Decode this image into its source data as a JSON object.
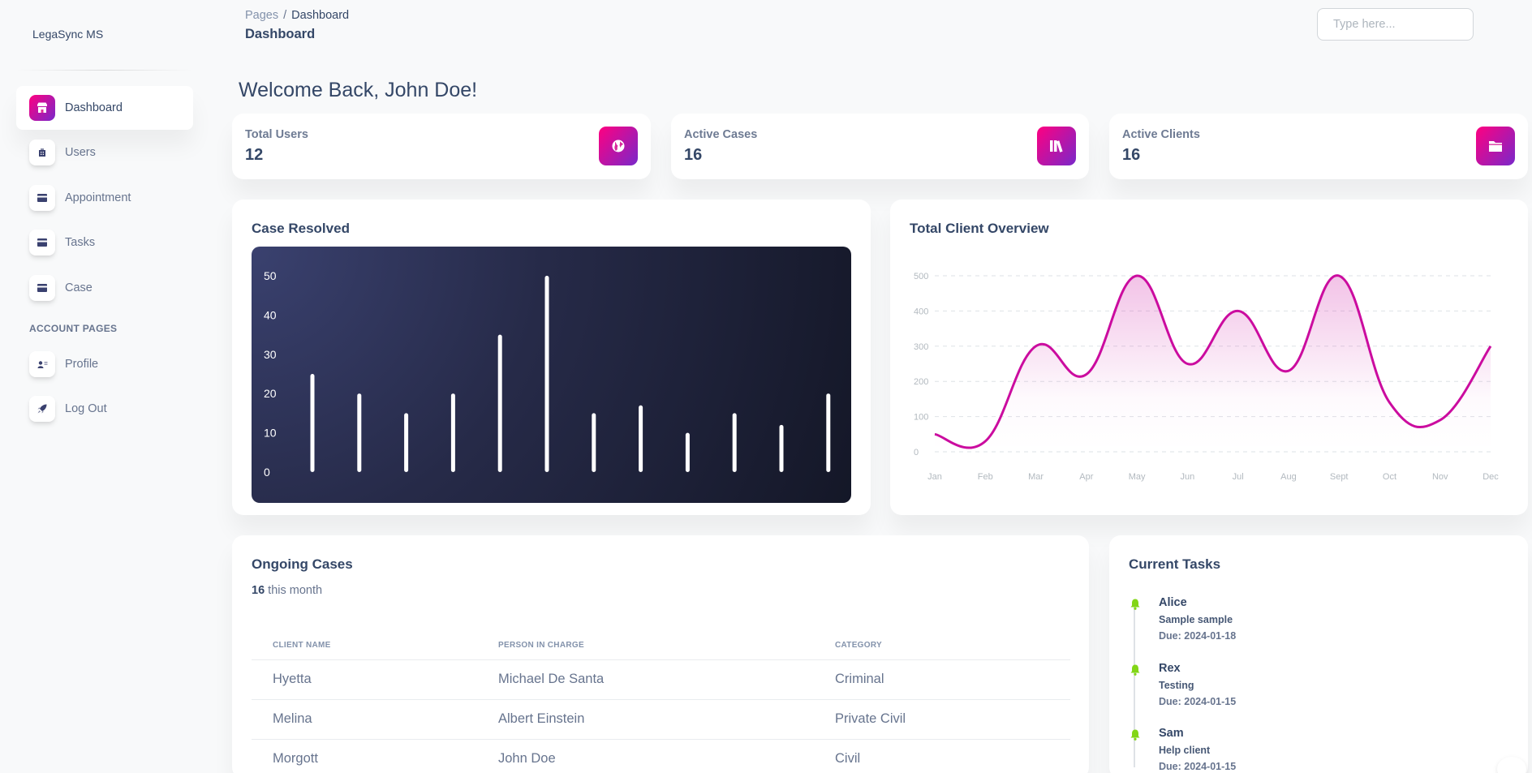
{
  "app": {
    "brand": "LegaSync MS"
  },
  "sidebar": {
    "items": [
      {
        "label": "Dashboard",
        "icon": "shop-icon",
        "active": true
      },
      {
        "label": "Users",
        "icon": "office-icon"
      },
      {
        "label": "Appointment",
        "icon": "credit-card-icon"
      },
      {
        "label": "Tasks",
        "icon": "credit-card-icon"
      },
      {
        "label": "Case",
        "icon": "credit-card-icon"
      }
    ],
    "account_heading": "ACCOUNT PAGES",
    "account_items": [
      {
        "label": "Profile",
        "icon": "profile-card-icon"
      },
      {
        "label": "Log Out",
        "icon": "rocket-icon"
      }
    ]
  },
  "header": {
    "breadcrumb_root": "Pages",
    "breadcrumb_sep": "/",
    "breadcrumb_current": "Dashboard",
    "title": "Dashboard",
    "search_placeholder": "Type here..."
  },
  "welcome": "Welcome Back, John Doe!",
  "stats": [
    {
      "label": "Total Users",
      "value": "12",
      "icon": "globe-icon"
    },
    {
      "label": "Active Cases",
      "value": "16",
      "icon": "library-icon"
    },
    {
      "label": "Active Clients",
      "value": "16",
      "icon": "folder-icon"
    }
  ],
  "colors": {
    "accent_start": "#7928ca",
    "accent_end": "#ff0080",
    "line": "#cb0c9f",
    "task_bell": "#82d616"
  },
  "chart_data": [
    {
      "type": "bar",
      "title": "Case Resolved",
      "values": [
        25,
        20,
        15,
        20,
        35,
        50,
        15,
        17,
        10,
        15,
        12,
        20
      ],
      "ylim": [
        0,
        50
      ],
      "yticks": [
        "0",
        "10",
        "20",
        "30",
        "40",
        "50"
      ]
    },
    {
      "type": "area",
      "title": "Total Client Overview",
      "categories": [
        "Jan",
        "Feb",
        "Mar",
        "Apr",
        "May",
        "Jun",
        "Jul",
        "Aug",
        "Sept",
        "Oct",
        "Nov",
        "Dec"
      ],
      "values": [
        50,
        30,
        300,
        220,
        500,
        250,
        400,
        230,
        500,
        140,
        90,
        300
      ],
      "ylim": [
        0,
        500
      ],
      "yticks": [
        "0",
        "100",
        "200",
        "300",
        "400",
        "500"
      ],
      "grid": true
    }
  ],
  "cases": {
    "title": "Ongoing Cases",
    "count": "16",
    "count_suffix": "this month",
    "columns": [
      "CLIENT NAME",
      "PERSON IN CHARGE",
      "CATEGORY"
    ],
    "rows": [
      [
        "Hyetta",
        "Michael De Santa",
        "Criminal"
      ],
      [
        "Melina",
        "Albert Einstein",
        "Private Civil"
      ],
      [
        "Morgott",
        "John Doe",
        "Civil"
      ]
    ]
  },
  "tasks": {
    "title": "Current Tasks",
    "items": [
      {
        "name": "Alice",
        "desc": "Sample sample",
        "due": "Due: 2024-01-18"
      },
      {
        "name": "Rex",
        "desc": "Testing",
        "due": "Due: 2024-01-15"
      },
      {
        "name": "Sam",
        "desc": "Help client",
        "due": "Due: 2024-01-15"
      }
    ]
  }
}
